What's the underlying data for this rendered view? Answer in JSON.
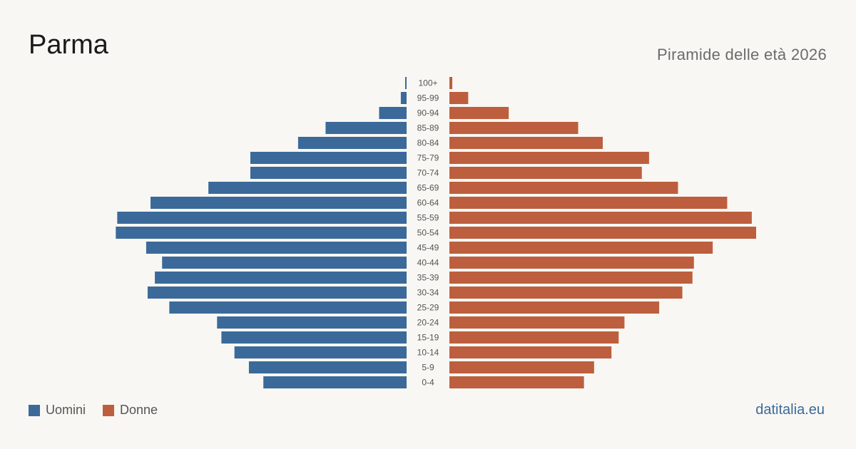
{
  "title": "Parma",
  "subtitle": "Piramide delle età 2026",
  "source": "datitalia.eu",
  "colors": {
    "men": "#3b6a9a",
    "women": "#bd5f3e",
    "background": "#f9f7f3"
  },
  "legend": {
    "men": "Uomini",
    "women": "Donne"
  },
  "chart_data": {
    "type": "bar",
    "orientation": "horizontal-pyramid",
    "categories": [
      "100+",
      "95-99",
      "90-94",
      "85-89",
      "80-84",
      "75-79",
      "70-74",
      "65-69",
      "60-64",
      "55-59",
      "50-54",
      "45-49",
      "40-44",
      "35-39",
      "30-34",
      "25-29",
      "20-24",
      "15-19",
      "10-14",
      "5-9",
      "0-4"
    ],
    "series": [
      {
        "name": "Uomini",
        "values": [
          1,
          4,
          19,
          56,
          75,
          108,
          108,
          137,
          177,
          200,
          201,
          180,
          169,
          174,
          179,
          164,
          131,
          128,
          119,
          109,
          99
        ]
      },
      {
        "name": "Donne",
        "values": [
          2,
          13,
          41,
          89,
          106,
          138,
          133,
          158,
          192,
          209,
          212,
          182,
          169,
          168,
          161,
          145,
          121,
          117,
          112,
          100,
          93
        ]
      }
    ],
    "xlabel": "",
    "ylabel": "",
    "legend_position": "bottom-left"
  }
}
